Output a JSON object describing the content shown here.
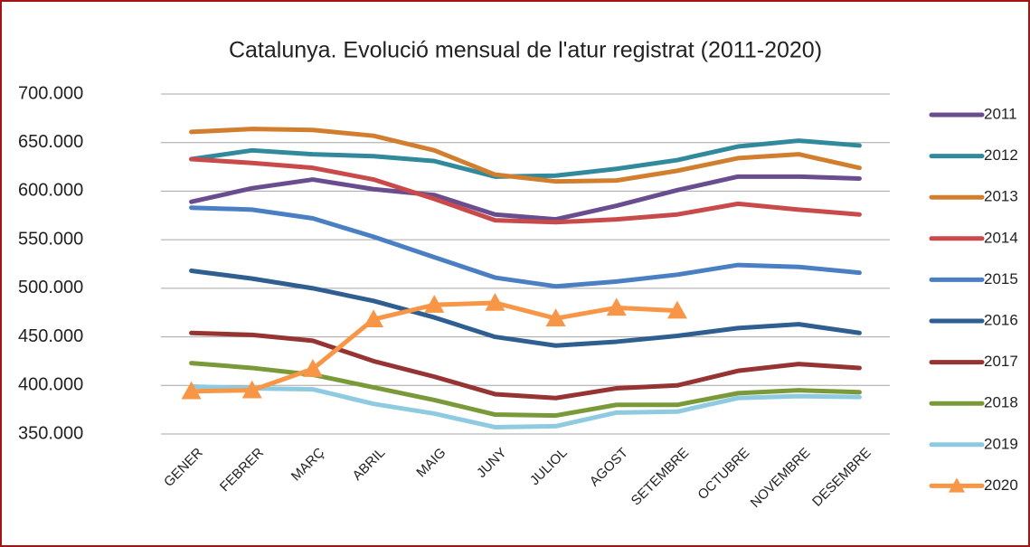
{
  "chart_data": {
    "type": "line",
    "title": "Catalunya. Evolució mensual de l'atur registrat (2011-2020)",
    "categories": [
      "GENER",
      "FEBRER",
      "MARÇ",
      "ABRIL",
      "MAIG",
      "JUNY",
      "JULIOL",
      "AGOST",
      "SETEMBRE",
      "OCTUBRE",
      "NOVEMBRE",
      "DESEMBRE"
    ],
    "series": [
      {
        "name": "2011",
        "color": "#6a4d8f",
        "values": [
          589000,
          603000,
          612000,
          602000,
          596000,
          576000,
          571000,
          585000,
          601000,
          615000,
          615000,
          613000
        ]
      },
      {
        "name": "2012",
        "color": "#31899c",
        "values": [
          633000,
          642000,
          638000,
          636000,
          631000,
          615000,
          616000,
          623000,
          632000,
          646000,
          652000,
          647000
        ]
      },
      {
        "name": "2013",
        "color": "#d17f2f",
        "values": [
          661000,
          664000,
          663000,
          657000,
          642000,
          617000,
          610000,
          611000,
          621000,
          634000,
          638000,
          624000
        ]
      },
      {
        "name": "2014",
        "color": "#c94a4a",
        "values": [
          633000,
          629000,
          624000,
          612000,
          592000,
          570000,
          568000,
          571000,
          576000,
          587000,
          581000,
          576000
        ]
      },
      {
        "name": "2015",
        "color": "#4a7fc4",
        "values": [
          583000,
          581000,
          572000,
          553000,
          532000,
          511000,
          502000,
          507000,
          514000,
          524000,
          522000,
          516000
        ]
      },
      {
        "name": "2016",
        "color": "#2e5f90",
        "values": [
          518000,
          510000,
          500000,
          487000,
          470000,
          450000,
          441000,
          445000,
          451000,
          459000,
          463000,
          454000
        ]
      },
      {
        "name": "2017",
        "color": "#963434",
        "values": [
          454000,
          452000,
          446000,
          425000,
          409000,
          391000,
          387000,
          397000,
          400000,
          415000,
          422000,
          418000
        ]
      },
      {
        "name": "2018",
        "color": "#7a9a3a",
        "values": [
          423000,
          418000,
          411000,
          398000,
          385000,
          370000,
          369000,
          380000,
          380000,
          392000,
          395000,
          393000
        ]
      },
      {
        "name": "2019",
        "color": "#8fcbe0",
        "values": [
          399000,
          397000,
          396000,
          381000,
          371000,
          357000,
          358000,
          372000,
          373000,
          387000,
          389000,
          388000
        ]
      },
      {
        "name": "2020",
        "color": "#f79646",
        "marker": "triangle",
        "values": [
          394000,
          395000,
          417000,
          468000,
          483000,
          485000,
          469000,
          480000,
          477000,
          null,
          null,
          null
        ]
      }
    ],
    "ylim": [
      350000,
      700000
    ],
    "yticks": [
      {
        "value": 350000,
        "label": "350.000"
      },
      {
        "value": 400000,
        "label": "400.000"
      },
      {
        "value": 450000,
        "label": "450.000"
      },
      {
        "value": 500000,
        "label": "500.000"
      },
      {
        "value": 550000,
        "label": "550.000"
      },
      {
        "value": 600000,
        "label": "600.000"
      },
      {
        "value": 650000,
        "label": "650.000"
      },
      {
        "value": 700000,
        "label": "700.000"
      }
    ],
    "grid": true,
    "legend": "right"
  }
}
